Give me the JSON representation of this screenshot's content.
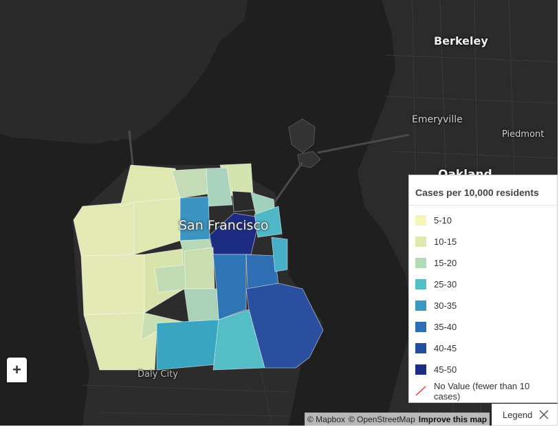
{
  "map": {
    "labels": {
      "berkeley": "Berkeley",
      "emeryville": "Emeryville",
      "piedmont": "Piedmont",
      "oakland": "Oakland",
      "san_francisco": "San Francisco",
      "daly_city": "Daly City"
    },
    "zoom_in_label": "+",
    "attribution": {
      "mapbox": "© Mapbox",
      "osm": "© OpenStreetMap",
      "improve": "Improve this map"
    }
  },
  "legend": {
    "title": "Cases per 10,000 residents",
    "items": [
      {
        "label": "5-10",
        "color": "#f4f6b8"
      },
      {
        "label": "10-15",
        "color": "#dfe9b0"
      },
      {
        "label": "15-20",
        "color": "#b2dcb8"
      },
      {
        "label": "25-30",
        "color": "#56bec6"
      },
      {
        "label": "30-35",
        "color": "#3b98c2"
      },
      {
        "label": "35-40",
        "color": "#2e6fb3"
      },
      {
        "label": "40-45",
        "color": "#244c9f"
      },
      {
        "label": "45-50",
        "color": "#1c2c83"
      }
    ],
    "no_value": {
      "label": "No Value (fewer than 10 cases)",
      "color": "#e23b3b"
    },
    "toggle_label": "Legend"
  }
}
